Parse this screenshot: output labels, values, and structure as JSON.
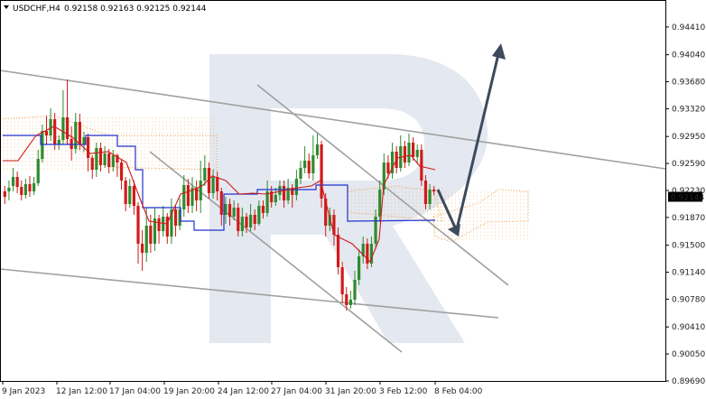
{
  "header": {
    "symbol_label": "USDCHF,H4",
    "ohlc_text": "0.92158 0.92163 0.92125 0.92144"
  },
  "colors": {
    "bull": "#2e8b2e",
    "bear": "#d11a1a",
    "kijun": "#2233cc",
    "tenkan": "#d11a1a",
    "cloud": "#f0a050",
    "channel": "#a0a0a0",
    "arrow": "#3c4a5c",
    "watermark": "#e4e8f0",
    "price_tag_bg": "#000000",
    "price_tag_fg": "#ffffff"
  },
  "chart_data": {
    "type": "candlestick",
    "x_ticks": [
      "9 Jan 2023",
      "12 Jan 12:00",
      "17 Jan 04:00",
      "19 Jan 20:00",
      "24 Jan 12:00",
      "27 Jan 04:00",
      "31 Jan 20:00",
      "3 Feb 12:00",
      "8 Feb 04:00"
    ],
    "y_ticks": [
      "0.94410",
      "0.94040",
      "0.93680",
      "0.93320",
      "0.92950",
      "0.92590",
      "0.92230",
      "0.91870",
      "0.91500",
      "0.91140",
      "0.90780",
      "0.90410",
      "0.90050",
      "0.89690"
    ],
    "ylim": [
      0.8969,
      0.9477
    ],
    "last_price": "0.92144",
    "y_end": 0.9214
  }
}
